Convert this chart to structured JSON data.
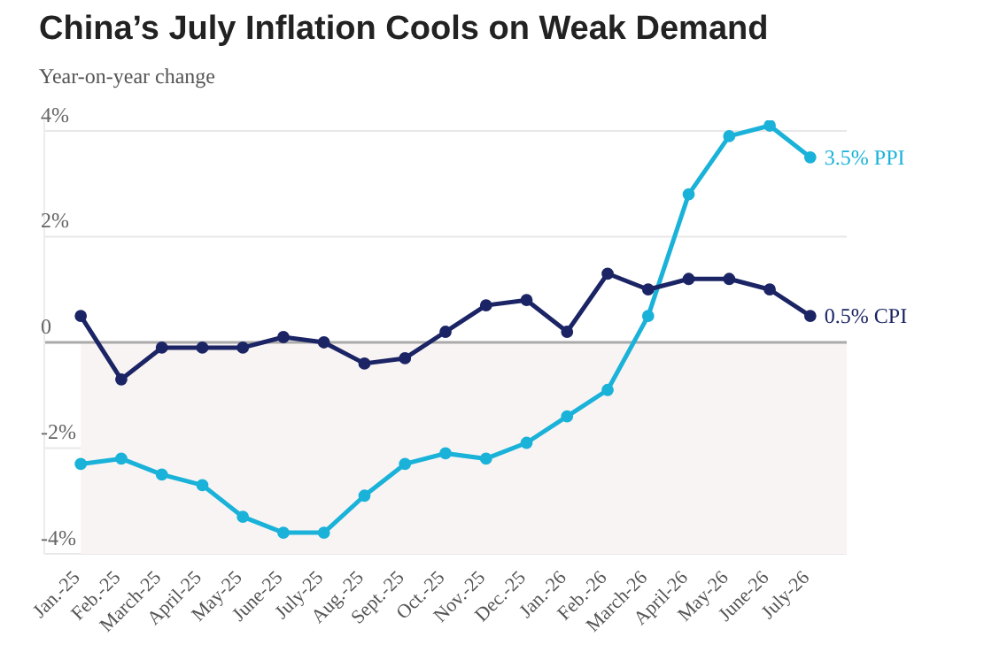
{
  "chart_data": {
    "type": "line",
    "title": "China’s July Inflation Cools on Weak Demand",
    "subtitle": "Year-on-year change",
    "categories": [
      "Jan.-25",
      "Feb.-25",
      "March-25",
      "April-25",
      "May-25",
      "June-25",
      "July-25",
      "Aug.-25",
      "Sept.-25",
      "Oct.-25",
      "Nov.-25",
      "Dec.-25",
      "Jan.-26",
      "Feb.-26",
      "March-26",
      "April-26",
      "May-26",
      "June-26",
      "July-26"
    ],
    "series": [
      {
        "name": "3.5% PPI",
        "color": "#1ab2d9",
        "values": [
          -2.3,
          -2.2,
          -2.5,
          -2.7,
          -3.3,
          -3.6,
          -3.6,
          -2.9,
          -2.3,
          -2.1,
          -2.2,
          -1.9,
          -1.4,
          -0.9,
          0.5,
          2.8,
          3.9,
          4.1,
          3.5
        ]
      },
      {
        "name": "0.5% CPI",
        "color": "#1b2464",
        "values": [
          0.5,
          -0.7,
          -0.1,
          -0.1,
          -0.1,
          0.1,
          0.0,
          -0.4,
          -0.3,
          0.2,
          0.7,
          0.8,
          0.2,
          1.3,
          1.0,
          1.2,
          1.2,
          1.0,
          0.5
        ]
      }
    ],
    "ylim": [
      -4,
      4.2
    ],
    "yticks": [
      {
        "value": -4,
        "label": "-4%"
      },
      {
        "value": -2,
        "label": "-2%"
      },
      {
        "value": 0,
        "label": "0"
      },
      {
        "value": 2,
        "label": "2%"
      },
      {
        "value": 4,
        "label": "4%"
      }
    ],
    "bands": [
      {
        "axis": "y",
        "from": -4,
        "to": 0,
        "color": "#f8f4f3"
      }
    ],
    "ref_lines": [
      {
        "axis": "y",
        "value": 0,
        "color": "#aaaaaa"
      }
    ],
    "grid": "y",
    "marker": "circle",
    "line_style": "solid",
    "legend": false
  }
}
